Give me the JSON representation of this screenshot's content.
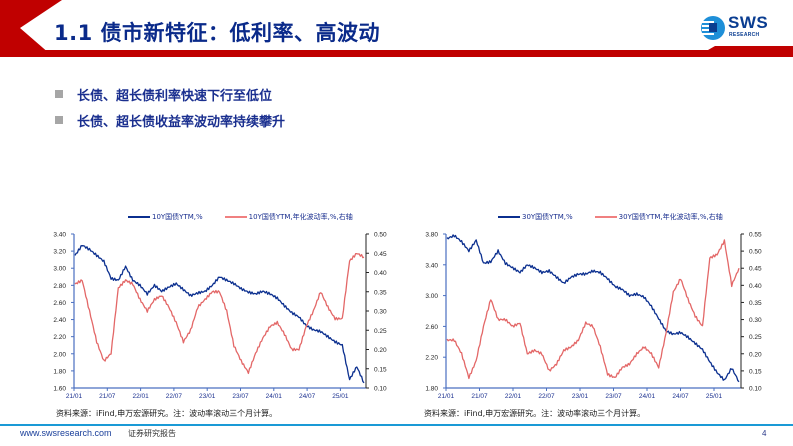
{
  "header": {
    "title": "1.1 债市新特征：低利率、高波动",
    "logo_text": "SWS",
    "logo_sub": "RESEARCH",
    "accent_color": "#c00000",
    "title_color": "#0a2a8a"
  },
  "bullets": [
    {
      "text": "长债、超长债利率快速下行至低位"
    },
    {
      "text": "长债、超长债收益率波动率持续攀升"
    }
  ],
  "charts": [
    {
      "legend": [
        "10Y国债YTM,%",
        "10Y国债YTM,年化波动率,%,右轴"
      ],
      "source": "资料来源：iFind,申万宏源研究。注：波动率滚动三个月计算。"
    },
    {
      "legend": [
        "30Y国债YTM,%",
        "30Y国债YTM,年化波动率,%,右轴"
      ],
      "source": "资料来源：iFind,申万宏源研究。注：波动率滚动三个月计算。"
    }
  ],
  "footer": {
    "url": "www.swsresearch.com",
    "label": "证券研究报告",
    "page": "4"
  },
  "chart_data": [
    {
      "type": "line",
      "title": "",
      "x_ticks": [
        "21/01",
        "21/07",
        "22/01",
        "22/07",
        "23/01",
        "23/07",
        "24/01",
        "24/07",
        "25/01"
      ],
      "ylabel": "",
      "ylim": [
        1.6,
        3.4
      ],
      "y_ticks": [
        "1.60",
        "1.80",
        "2.00",
        "2.20",
        "2.40",
        "2.60",
        "2.80",
        "3.00",
        "3.20",
        "3.40"
      ],
      "y2lim": [
        0.1,
        0.5
      ],
      "y2_ticks": [
        "0.10",
        "0.15",
        "0.20",
        "0.25",
        "0.30",
        "0.35",
        "0.40",
        "0.45",
        "0.50"
      ],
      "legend_position": "top",
      "grid": false,
      "series": [
        {
          "name": "10Y国债YTM,%",
          "axis": "left",
          "color": "#0b2f8f",
          "x": [
            0,
            0.25,
            0.5,
            0.75,
            1,
            1.25,
            1.5,
            1.75,
            2,
            2.25,
            2.5,
            2.75,
            3,
            3.25,
            3.5,
            3.75,
            4,
            4.25,
            4.5,
            4.75,
            5,
            5.25,
            5.5,
            5.75,
            6,
            6.25,
            6.5,
            6.75,
            7,
            7.25,
            7.5,
            7.75,
            8,
            8.25,
            8.5,
            8.75,
            9,
            9.25,
            9.5,
            9.75,
            10
          ],
          "values": [
            3.15,
            3.27,
            3.22,
            3.15,
            3.08,
            2.88,
            2.86,
            3.02,
            2.86,
            2.8,
            2.7,
            2.8,
            2.73,
            2.78,
            2.82,
            2.75,
            2.68,
            2.71,
            2.73,
            2.8,
            2.9,
            2.86,
            2.82,
            2.76,
            2.72,
            2.7,
            2.73,
            2.7,
            2.65,
            2.56,
            2.48,
            2.43,
            2.33,
            2.28,
            2.26,
            2.2,
            2.14,
            2.1,
            1.7,
            1.85,
            1.66
          ]
        },
        {
          "name": "10Y国债YTM,年化波动率,%,右轴",
          "axis": "right",
          "color": "#e06060",
          "x": [
            0,
            0.25,
            0.5,
            0.75,
            1,
            1.25,
            1.5,
            1.75,
            2,
            2.25,
            2.5,
            2.75,
            3,
            3.25,
            3.5,
            3.75,
            4,
            4.25,
            4.5,
            4.75,
            5,
            5.25,
            5.5,
            5.75,
            6,
            6.25,
            6.5,
            6.75,
            7,
            7.25,
            7.5,
            7.75,
            8,
            8.25,
            8.5,
            8.75,
            9,
            9.25,
            9.5,
            9.75,
            10
          ],
          "values": [
            0.37,
            0.38,
            0.3,
            0.22,
            0.17,
            0.19,
            0.36,
            0.38,
            0.37,
            0.33,
            0.3,
            0.33,
            0.34,
            0.31,
            0.27,
            0.22,
            0.25,
            0.31,
            0.33,
            0.35,
            0.35,
            0.3,
            0.21,
            0.17,
            0.14,
            0.19,
            0.23,
            0.26,
            0.27,
            0.24,
            0.2,
            0.2,
            0.26,
            0.3,
            0.35,
            0.31,
            0.28,
            0.28,
            0.43,
            0.45,
            0.44
          ]
        }
      ]
    },
    {
      "type": "line",
      "title": "",
      "x_ticks": [
        "21/01",
        "21/07",
        "22/01",
        "22/07",
        "23/01",
        "23/07",
        "24/01",
        "24/07",
        "25/01"
      ],
      "ylabel": "",
      "ylim": [
        1.8,
        3.8
      ],
      "y_ticks": [
        "1.80",
        "2.20",
        "2.60",
        "3.00",
        "3.40",
        "3.80"
      ],
      "y2lim": [
        0.1,
        0.55
      ],
      "y2_ticks": [
        "0.10",
        "0.15",
        "0.20",
        "0.25",
        "0.30",
        "0.35",
        "0.40",
        "0.45",
        "0.50",
        "0.55"
      ],
      "legend_position": "top",
      "grid": false,
      "series": [
        {
          "name": "30Y国债YTM,%",
          "axis": "left",
          "color": "#0b2f8f",
          "x": [
            0,
            0.25,
            0.5,
            0.75,
            1,
            1.25,
            1.5,
            1.75,
            2,
            2.25,
            2.5,
            2.75,
            3,
            3.25,
            3.5,
            3.75,
            4,
            4.25,
            4.5,
            4.75,
            5,
            5.25,
            5.5,
            5.75,
            6,
            6.25,
            6.5,
            6.75,
            7,
            7.25,
            7.5,
            7.75,
            8,
            8.25,
            8.5,
            8.75,
            9,
            9.25,
            9.5,
            9.75,
            10
          ],
          "values": [
            3.74,
            3.78,
            3.7,
            3.58,
            3.72,
            3.42,
            3.44,
            3.58,
            3.42,
            3.36,
            3.3,
            3.4,
            3.36,
            3.3,
            3.32,
            3.24,
            3.16,
            3.24,
            3.28,
            3.28,
            3.32,
            3.3,
            3.22,
            3.12,
            3.08,
            3.0,
            3.02,
            2.98,
            2.86,
            2.7,
            2.54,
            2.5,
            2.52,
            2.46,
            2.38,
            2.3,
            2.14,
            2.0,
            1.9,
            2.06,
            1.88
          ]
        },
        {
          "name": "30Y国债YTM,年化波动率,%,右轴",
          "axis": "right",
          "color": "#e06060",
          "x": [
            0,
            0.25,
            0.5,
            0.75,
            1,
            1.25,
            1.5,
            1.75,
            2,
            2.25,
            2.5,
            2.75,
            3,
            3.25,
            3.5,
            3.75,
            4,
            4.25,
            4.5,
            4.75,
            5,
            5.25,
            5.5,
            5.75,
            6,
            6.25,
            6.5,
            6.75,
            7,
            7.25,
            7.5,
            7.75,
            8,
            8.25,
            8.5,
            8.75,
            9,
            9.25,
            9.5,
            9.75,
            10
          ],
          "values": [
            0.24,
            0.24,
            0.2,
            0.13,
            0.18,
            0.28,
            0.36,
            0.3,
            0.3,
            0.28,
            0.29,
            0.2,
            0.21,
            0.2,
            0.15,
            0.17,
            0.21,
            0.22,
            0.24,
            0.29,
            0.28,
            0.22,
            0.14,
            0.13,
            0.16,
            0.17,
            0.2,
            0.22,
            0.2,
            0.16,
            0.26,
            0.38,
            0.42,
            0.36,
            0.31,
            0.28,
            0.48,
            0.49,
            0.53,
            0.4,
            0.45
          ]
        }
      ]
    }
  ]
}
